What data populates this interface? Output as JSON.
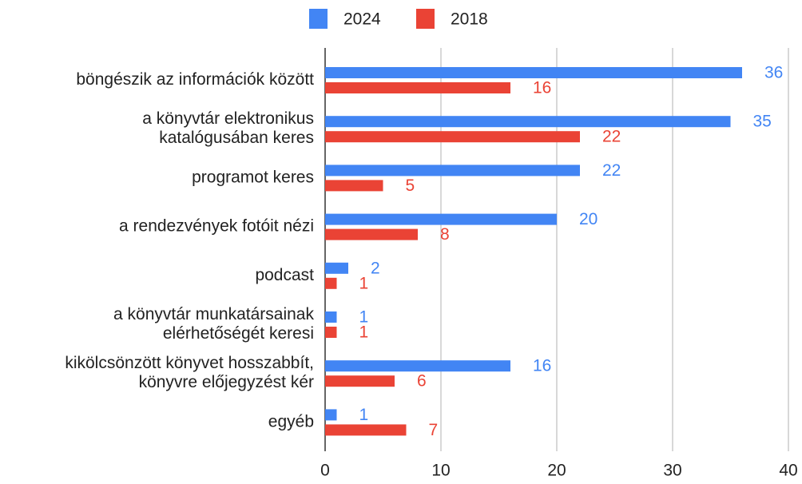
{
  "chart_data": {
    "type": "hbar",
    "categories": [
      [
        "böngészik az információk között"
      ],
      [
        "a könyvtár elektronikus",
        "katalógusában keres"
      ],
      [
        "programot keres"
      ],
      [
        "a rendezvények fotóit nézi"
      ],
      [
        "podcast"
      ],
      [
        "a könyvtár munkatársainak",
        "elérhetőségét keresi"
      ],
      [
        "kikölcsönzött könyvet hosszabbít,",
        "könyvre előjegyzést kér"
      ],
      [
        "egyéb"
      ]
    ],
    "series": [
      {
        "name": "2024",
        "color": "#4285f4",
        "values": [
          36,
          35,
          22,
          20,
          2,
          1,
          16,
          1
        ]
      },
      {
        "name": "2018",
        "color": "#ea4335",
        "values": [
          16,
          22,
          5,
          8,
          1,
          1,
          6,
          7
        ]
      }
    ],
    "xlim": [
      0,
      40
    ],
    "xticks": [
      0,
      10,
      20,
      30,
      40
    ],
    "grid": true,
    "legend": "top"
  }
}
